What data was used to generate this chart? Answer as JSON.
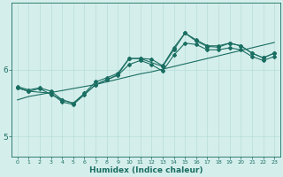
{
  "xlabel": "Humidex (Indice chaleur)",
  "ylabel": "",
  "bg_color": "#d4eeeb",
  "grid_color": "#b8ddd9",
  "line_color": "#1a6e62",
  "xlim": [
    -0.5,
    23.5
  ],
  "ylim": [
    4.7,
    7.0
  ],
  "yticks": [
    5,
    6
  ],
  "xticks": [
    0,
    1,
    2,
    3,
    4,
    5,
    6,
    7,
    8,
    9,
    10,
    11,
    12,
    13,
    14,
    15,
    16,
    17,
    18,
    19,
    20,
    21,
    22,
    23
  ],
  "line1_x": [
    0,
    1,
    2,
    3,
    4,
    5,
    6,
    7,
    8,
    9,
    10,
    11,
    12,
    13,
    14,
    15,
    16,
    17,
    18,
    19,
    20,
    21,
    22,
    23
  ],
  "line1_y": [
    5.75,
    5.7,
    5.73,
    5.68,
    5.55,
    5.5,
    5.65,
    5.82,
    5.88,
    5.95,
    6.17,
    6.17,
    6.16,
    6.06,
    6.33,
    6.55,
    6.45,
    6.36,
    6.36,
    6.4,
    6.36,
    6.25,
    6.18,
    6.25
  ],
  "line2_x": [
    0,
    1,
    2,
    3,
    4,
    5,
    6,
    7,
    8,
    9,
    10,
    11,
    12,
    13,
    14,
    15,
    16,
    17,
    18,
    19,
    20,
    21,
    22,
    23
  ],
  "line2_y": [
    5.73,
    5.68,
    5.72,
    5.63,
    5.55,
    5.5,
    5.63,
    5.78,
    5.85,
    5.92,
    6.08,
    6.14,
    6.08,
    5.98,
    6.22,
    6.4,
    6.38,
    6.3,
    6.3,
    6.33,
    6.3,
    6.2,
    6.14,
    6.2
  ],
  "line3_x": [
    0,
    1,
    3,
    4,
    5,
    7,
    8,
    9,
    10,
    11,
    13,
    14,
    15,
    16,
    17,
    18,
    19,
    20,
    21,
    22,
    23
  ],
  "line3_y": [
    5.73,
    5.68,
    5.65,
    5.52,
    5.48,
    5.78,
    5.85,
    5.93,
    6.17,
    6.17,
    6.05,
    6.3,
    6.55,
    6.43,
    6.35,
    6.34,
    6.4,
    6.36,
    6.25,
    6.18,
    6.25
  ],
  "line4_x": [
    0,
    1,
    2,
    3,
    4,
    5,
    6,
    7,
    8,
    9,
    10,
    11,
    12,
    13,
    14,
    15,
    16,
    17,
    18,
    19,
    20,
    21,
    22,
    23
  ],
  "line4_y": [
    5.55,
    5.6,
    5.63,
    5.66,
    5.69,
    5.72,
    5.75,
    5.78,
    5.82,
    5.86,
    5.9,
    5.94,
    5.97,
    6.01,
    6.05,
    6.09,
    6.13,
    6.17,
    6.21,
    6.25,
    6.29,
    6.33,
    6.37,
    6.41
  ]
}
